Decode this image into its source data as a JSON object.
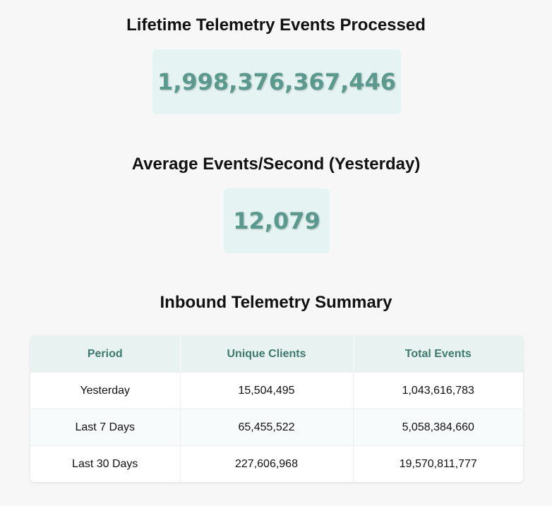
{
  "lifetime": {
    "title": "Lifetime Telemetry Events Processed",
    "value": "1,998,376,367,446"
  },
  "average": {
    "title": "Average Events/Second (Yesterday)",
    "value": "12,079"
  },
  "summary": {
    "title": "Inbound Telemetry Summary",
    "columns": [
      "Period",
      "Unique Clients",
      "Total Events"
    ],
    "rows": [
      [
        "Yesterday",
        "15,504,495",
        "1,043,616,783"
      ],
      [
        "Last 7 Days",
        "65,455,522",
        "5,058,384,660"
      ],
      [
        "Last 30 Days",
        "227,606,968",
        "19,570,811,777"
      ]
    ]
  },
  "colors": {
    "accent": "#5a9a8e",
    "stat_bg": "#e5f4f2",
    "header_text": "#3e7a6f",
    "header_bg": "#e8f2f0"
  }
}
